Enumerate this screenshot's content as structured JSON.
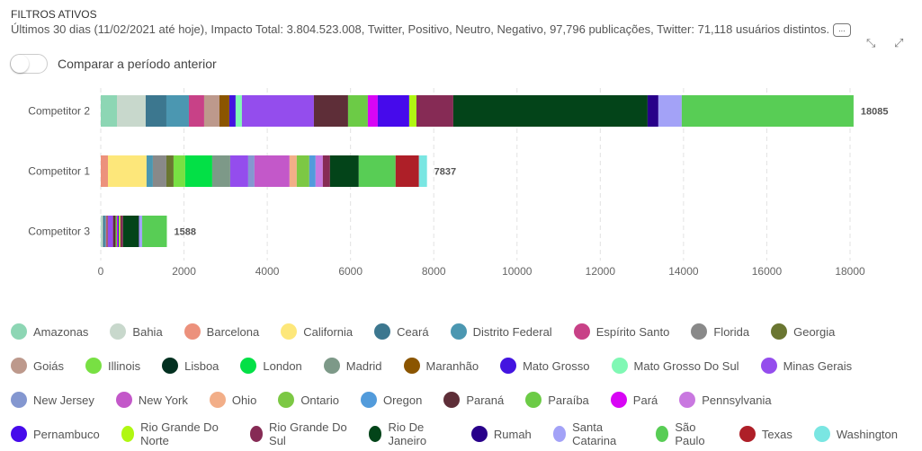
{
  "header": {
    "title": "FILTROS ATIVOS",
    "summary": "Últimos 30 dias (11/02/2021 até hoje), Impacto Total: 3.804.523.008, Twitter, Positivo, Neutro, Negativo, 97,796 publicações, Twitter: 71,118 usuários distintos.",
    "more_label": "...",
    "expand_icon": "expand-icon",
    "collapse_icon": "collapse-icon"
  },
  "toggle": {
    "label": "Comparar a período anterior",
    "on": false
  },
  "chart_data": {
    "type": "bar",
    "orientation": "horizontal",
    "stacked": true,
    "xlim": [
      0,
      18000
    ],
    "xticks": [
      0,
      2000,
      4000,
      6000,
      8000,
      10000,
      12000,
      14000,
      16000,
      18000
    ],
    "grid": true,
    "legend": "bottom",
    "categories": [
      "Competitor 2",
      "Competitor 1",
      "Competitor 3"
    ],
    "totals": [
      18085,
      7837,
      1588
    ],
    "series": [
      {
        "name": "Amazonas",
        "color": "#8dd6b4",
        "values": [
          389,
          0,
          15
        ]
      },
      {
        "name": "Bahia",
        "color": "#c8d8cc",
        "values": [
          691,
          0,
          40
        ]
      },
      {
        "name": "Barcelona",
        "color": "#ec917c",
        "values": [
          0,
          173,
          0
        ]
      },
      {
        "name": "California",
        "color": "#fde77a",
        "values": [
          0,
          928,
          0
        ]
      },
      {
        "name": "Ceará",
        "color": "#3c778f",
        "values": [
          497,
          0,
          40
        ]
      },
      {
        "name": "Distrito Federal",
        "color": "#4b97b1",
        "values": [
          540,
          151,
          30
        ]
      },
      {
        "name": "Espírito Santo",
        "color": "#c84187",
        "values": [
          367,
          0,
          20
        ]
      },
      {
        "name": "Florida",
        "color": "#898989",
        "values": [
          0,
          324,
          0
        ]
      },
      {
        "name": "Georgia",
        "color": "#6a7631",
        "values": [
          0,
          173,
          0
        ]
      },
      {
        "name": "Goiás",
        "color": "#bd998c",
        "values": [
          367,
          0,
          0
        ]
      },
      {
        "name": "Illinois",
        "color": "#78e043",
        "values": [
          0,
          281,
          0
        ]
      },
      {
        "name": "Lisboa",
        "color": "#023020",
        "values": [
          0,
          0,
          0
        ]
      },
      {
        "name": "London",
        "color": "#03e046",
        "values": [
          0,
          648,
          0
        ]
      },
      {
        "name": "Madrid",
        "color": "#7d9988",
        "values": [
          0,
          432,
          0
        ]
      },
      {
        "name": "Maranhão",
        "color": "#8b5500",
        "values": [
          238,
          0,
          20
        ]
      },
      {
        "name": "Mato Grosso",
        "color": "#4314e0",
        "values": [
          151,
          0,
          0
        ]
      },
      {
        "name": "Mato Grosso Do Sul",
        "color": "#80f8b4",
        "values": [
          151,
          0,
          0
        ]
      },
      {
        "name": "Minas Gerais",
        "color": "#944ded",
        "values": [
          1729,
          432,
          130
        ]
      },
      {
        "name": "New Jersey",
        "color": "#8497d0",
        "values": [
          0,
          151,
          0
        ]
      },
      {
        "name": "New York",
        "color": "#c358c9",
        "values": [
          0,
          842,
          0
        ]
      },
      {
        "name": "Ohio",
        "color": "#f2ae88",
        "values": [
          0,
          173,
          0
        ]
      },
      {
        "name": "Ontario",
        "color": "#7cc844",
        "values": [
          0,
          302,
          0
        ]
      },
      {
        "name": "Oregon",
        "color": "#529bdb",
        "values": [
          0,
          151,
          0
        ]
      },
      {
        "name": "Paraná",
        "color": "#5e2e38",
        "values": [
          821,
          0,
          65
        ]
      },
      {
        "name": "Paraíba",
        "color": "#6ccb46",
        "values": [
          475,
          0,
          30
        ]
      },
      {
        "name": "Pará",
        "color": "#d805f5",
        "values": [
          238,
          0,
          20
        ]
      },
      {
        "name": "Pennsylvania",
        "color": "#c978e0",
        "values": [
          0,
          173,
          0
        ]
      },
      {
        "name": "Pernambuco",
        "color": "#460aeb",
        "values": [
          756,
          0,
          25
        ]
      },
      {
        "name": "Rio Grande Do Norte",
        "color": "#b0f712",
        "values": [
          173,
          0,
          35
        ]
      },
      {
        "name": "Rio Grande Do Sul",
        "color": "#862b55",
        "values": [
          886,
          173,
          65
        ]
      },
      {
        "name": "Rio De Janeiro",
        "color": "#034419",
        "values": [
          4667,
          691,
          380
        ]
      },
      {
        "name": "Rumah",
        "color": "#28008a",
        "values": [
          259,
          0,
          10
        ]
      },
      {
        "name": "Santa Catarina",
        "color": "#a3a2f7",
        "values": [
          562,
          0,
          70
        ]
      },
      {
        "name": "São Paulo",
        "color": "#58cd55",
        "values": [
          4128,
          885,
          593
        ]
      },
      {
        "name": "Texas",
        "color": "#ae1f28",
        "values": [
          0,
          561,
          0
        ]
      },
      {
        "name": "Washington",
        "color": "#7ae6e2",
        "values": [
          0,
          193,
          0
        ]
      }
    ]
  }
}
